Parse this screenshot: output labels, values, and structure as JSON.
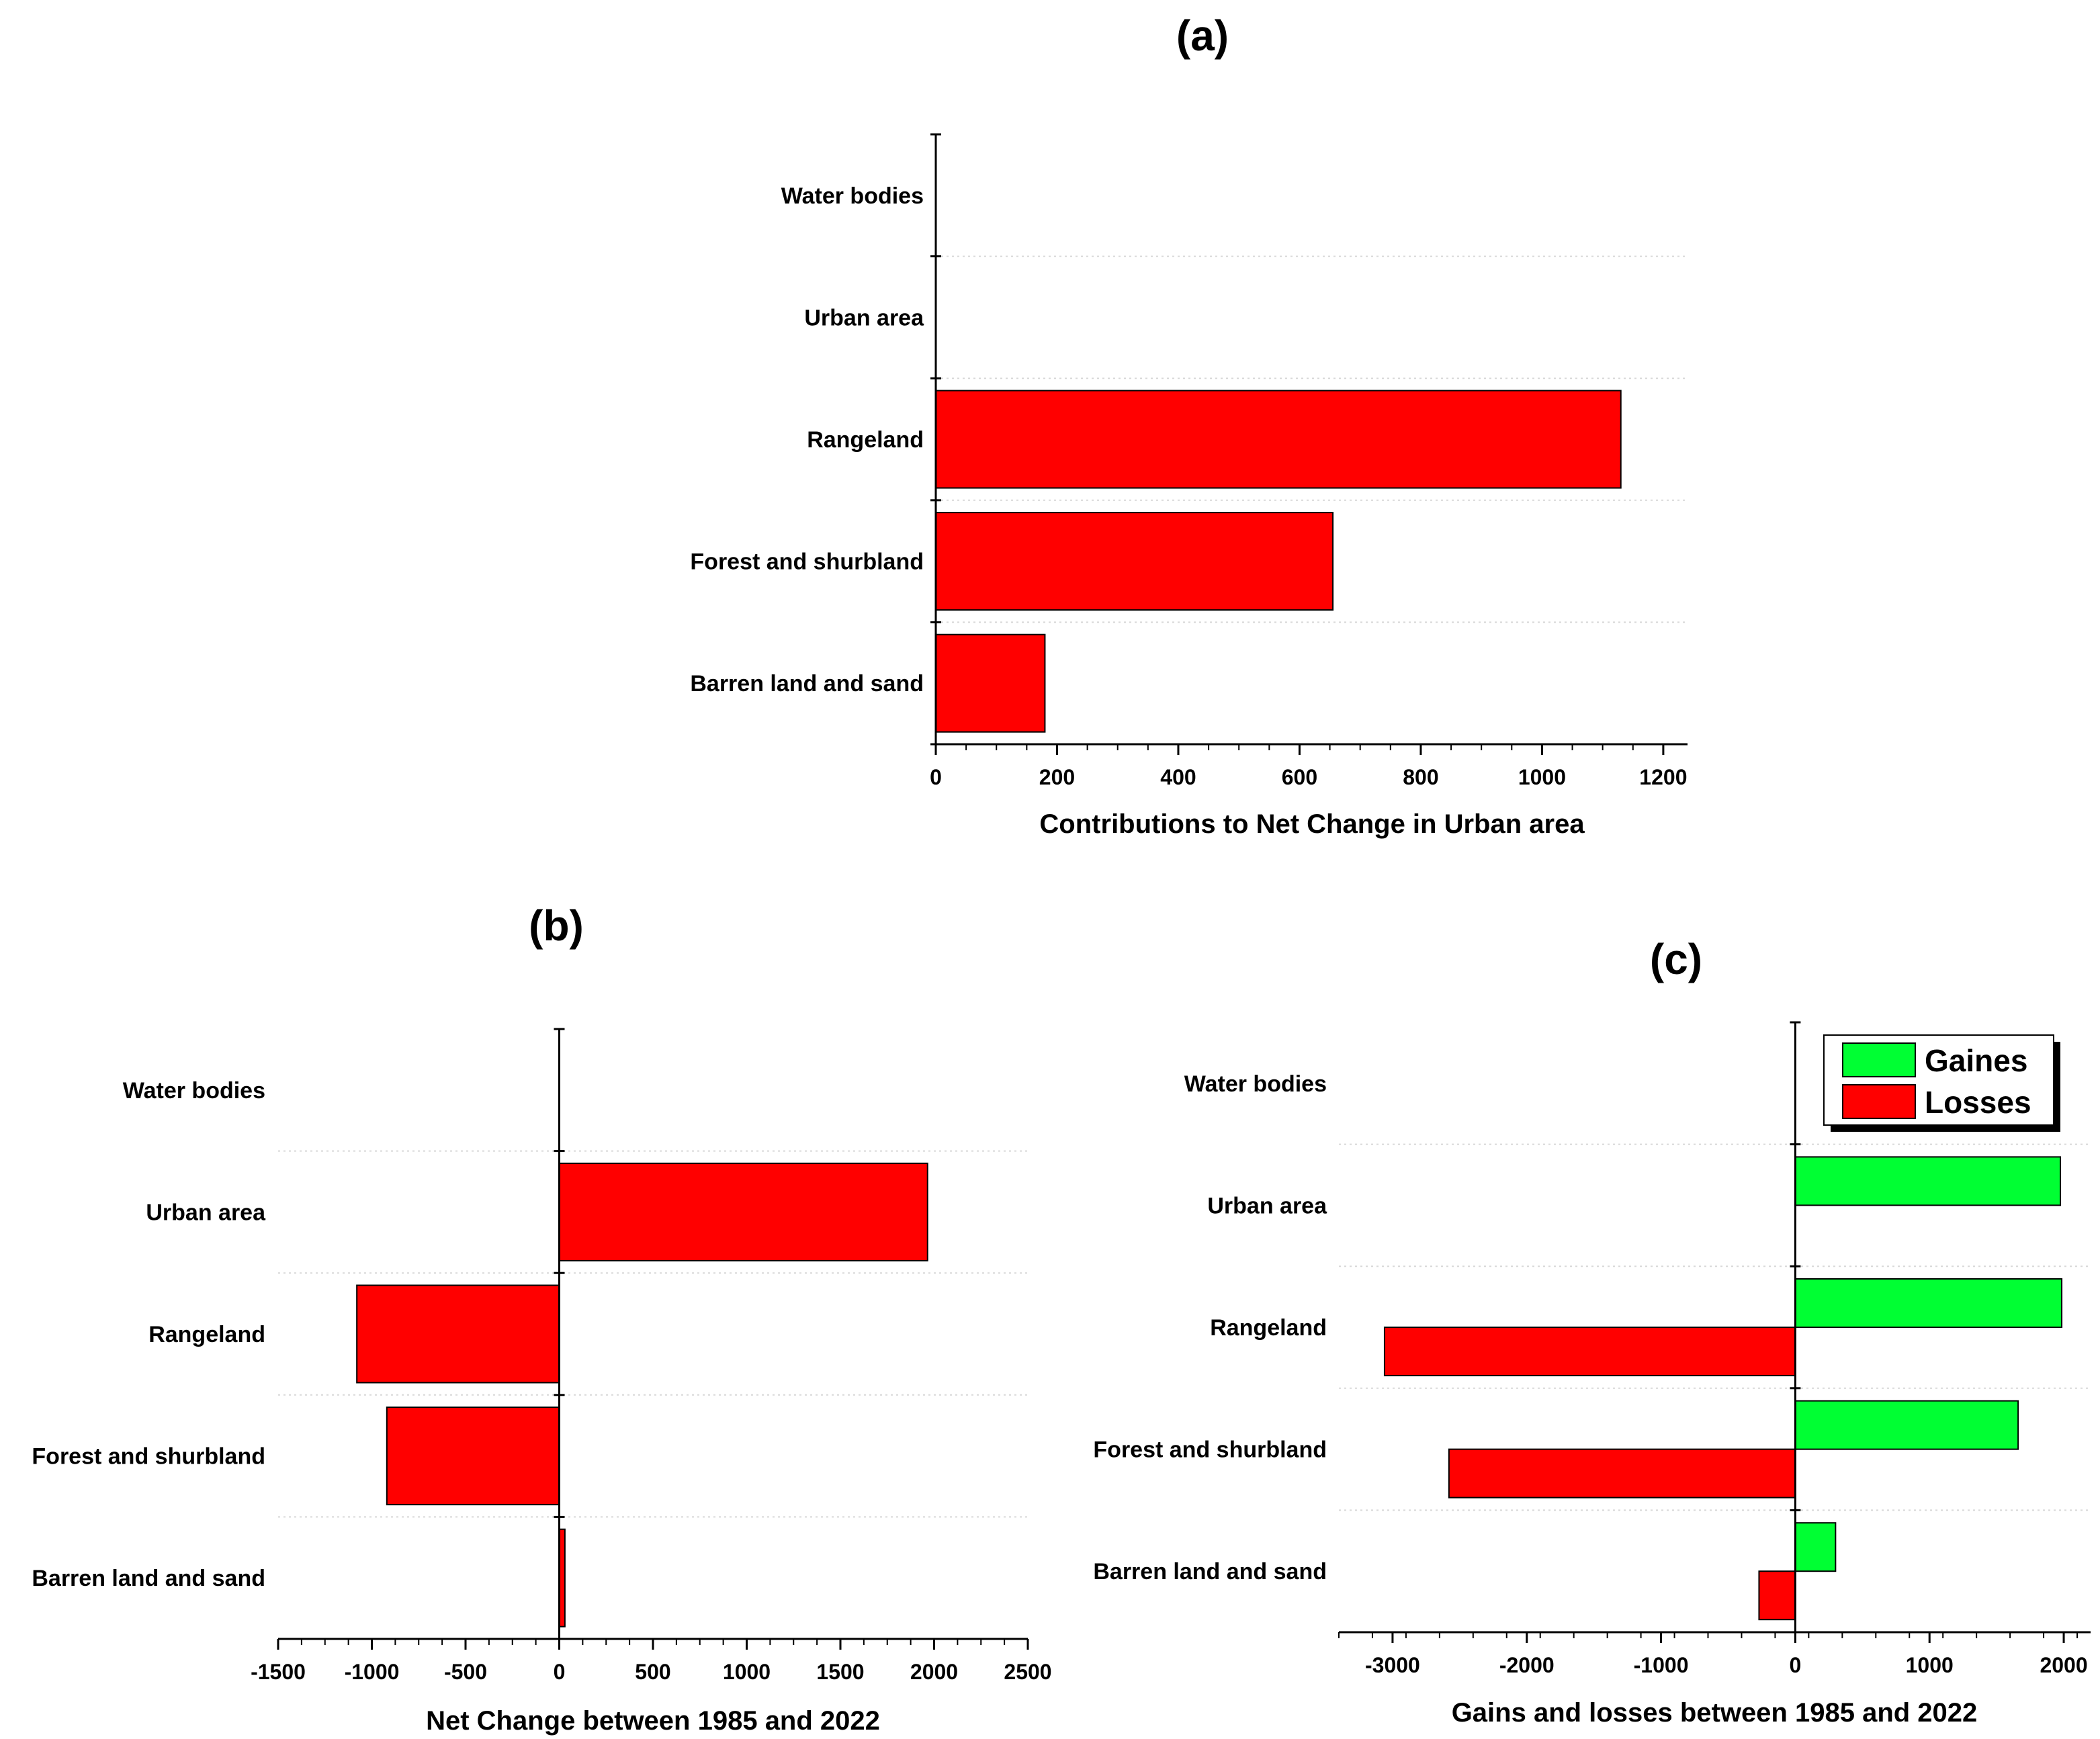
{
  "chart_data": [
    {
      "panel_label": "(a)",
      "type": "bar",
      "orientation": "horizontal",
      "categories": [
        "Water bodies",
        "Urban area",
        "Rangeland",
        "Forest and shurbland",
        "Barren land and sand"
      ],
      "series": [
        {
          "values": [
            0,
            0,
            1130,
            655,
            180
          ],
          "color": "#ff0000"
        }
      ],
      "xlabel": "Contributions to Net Change in Urban area",
      "xlim": [
        0,
        1240
      ],
      "xticks": [
        0,
        200,
        400,
        600,
        800,
        1000,
        1200
      ],
      "grid": "dotted horizontal"
    },
    {
      "panel_label": "(b)",
      "type": "bar",
      "orientation": "horizontal",
      "categories": [
        "Water bodies",
        "Urban area",
        "Rangeland",
        "Forest and shurbland",
        "Barren land and sand"
      ],
      "series": [
        {
          "values": [
            0,
            1965,
            -1080,
            -920,
            30
          ],
          "color": "#ff0000"
        }
      ],
      "xlabel": "Net Change between 1985 and 2022",
      "xlim": [
        -1500,
        2500
      ],
      "xticks": [
        -1500,
        -1000,
        -500,
        0,
        500,
        1000,
        1500,
        2000,
        2500
      ],
      "grid": "dotted horizontal"
    },
    {
      "panel_label": "(c)",
      "type": "bar",
      "orientation": "horizontal",
      "categories": [
        "Water bodies",
        "Urban area",
        "Rangeland",
        "Forest and shurbland",
        "Barren land and sand"
      ],
      "series": [
        {
          "name": "Gaines",
          "values": [
            0,
            1975,
            1985,
            1660,
            300
          ],
          "color": "#00ff33"
        },
        {
          "name": "Losses",
          "values": [
            0,
            0,
            -3060,
            -2580,
            -270
          ],
          "color": "#ff0000"
        }
      ],
      "xlabel": "Gains and losses between 1985 and 2022",
      "xlim": [
        -3400,
        2200
      ],
      "xticks": [
        -3000,
        -2000,
        -1000,
        0,
        1000,
        2000
      ],
      "legend": "top-right",
      "grid": "dotted horizontal"
    }
  ]
}
